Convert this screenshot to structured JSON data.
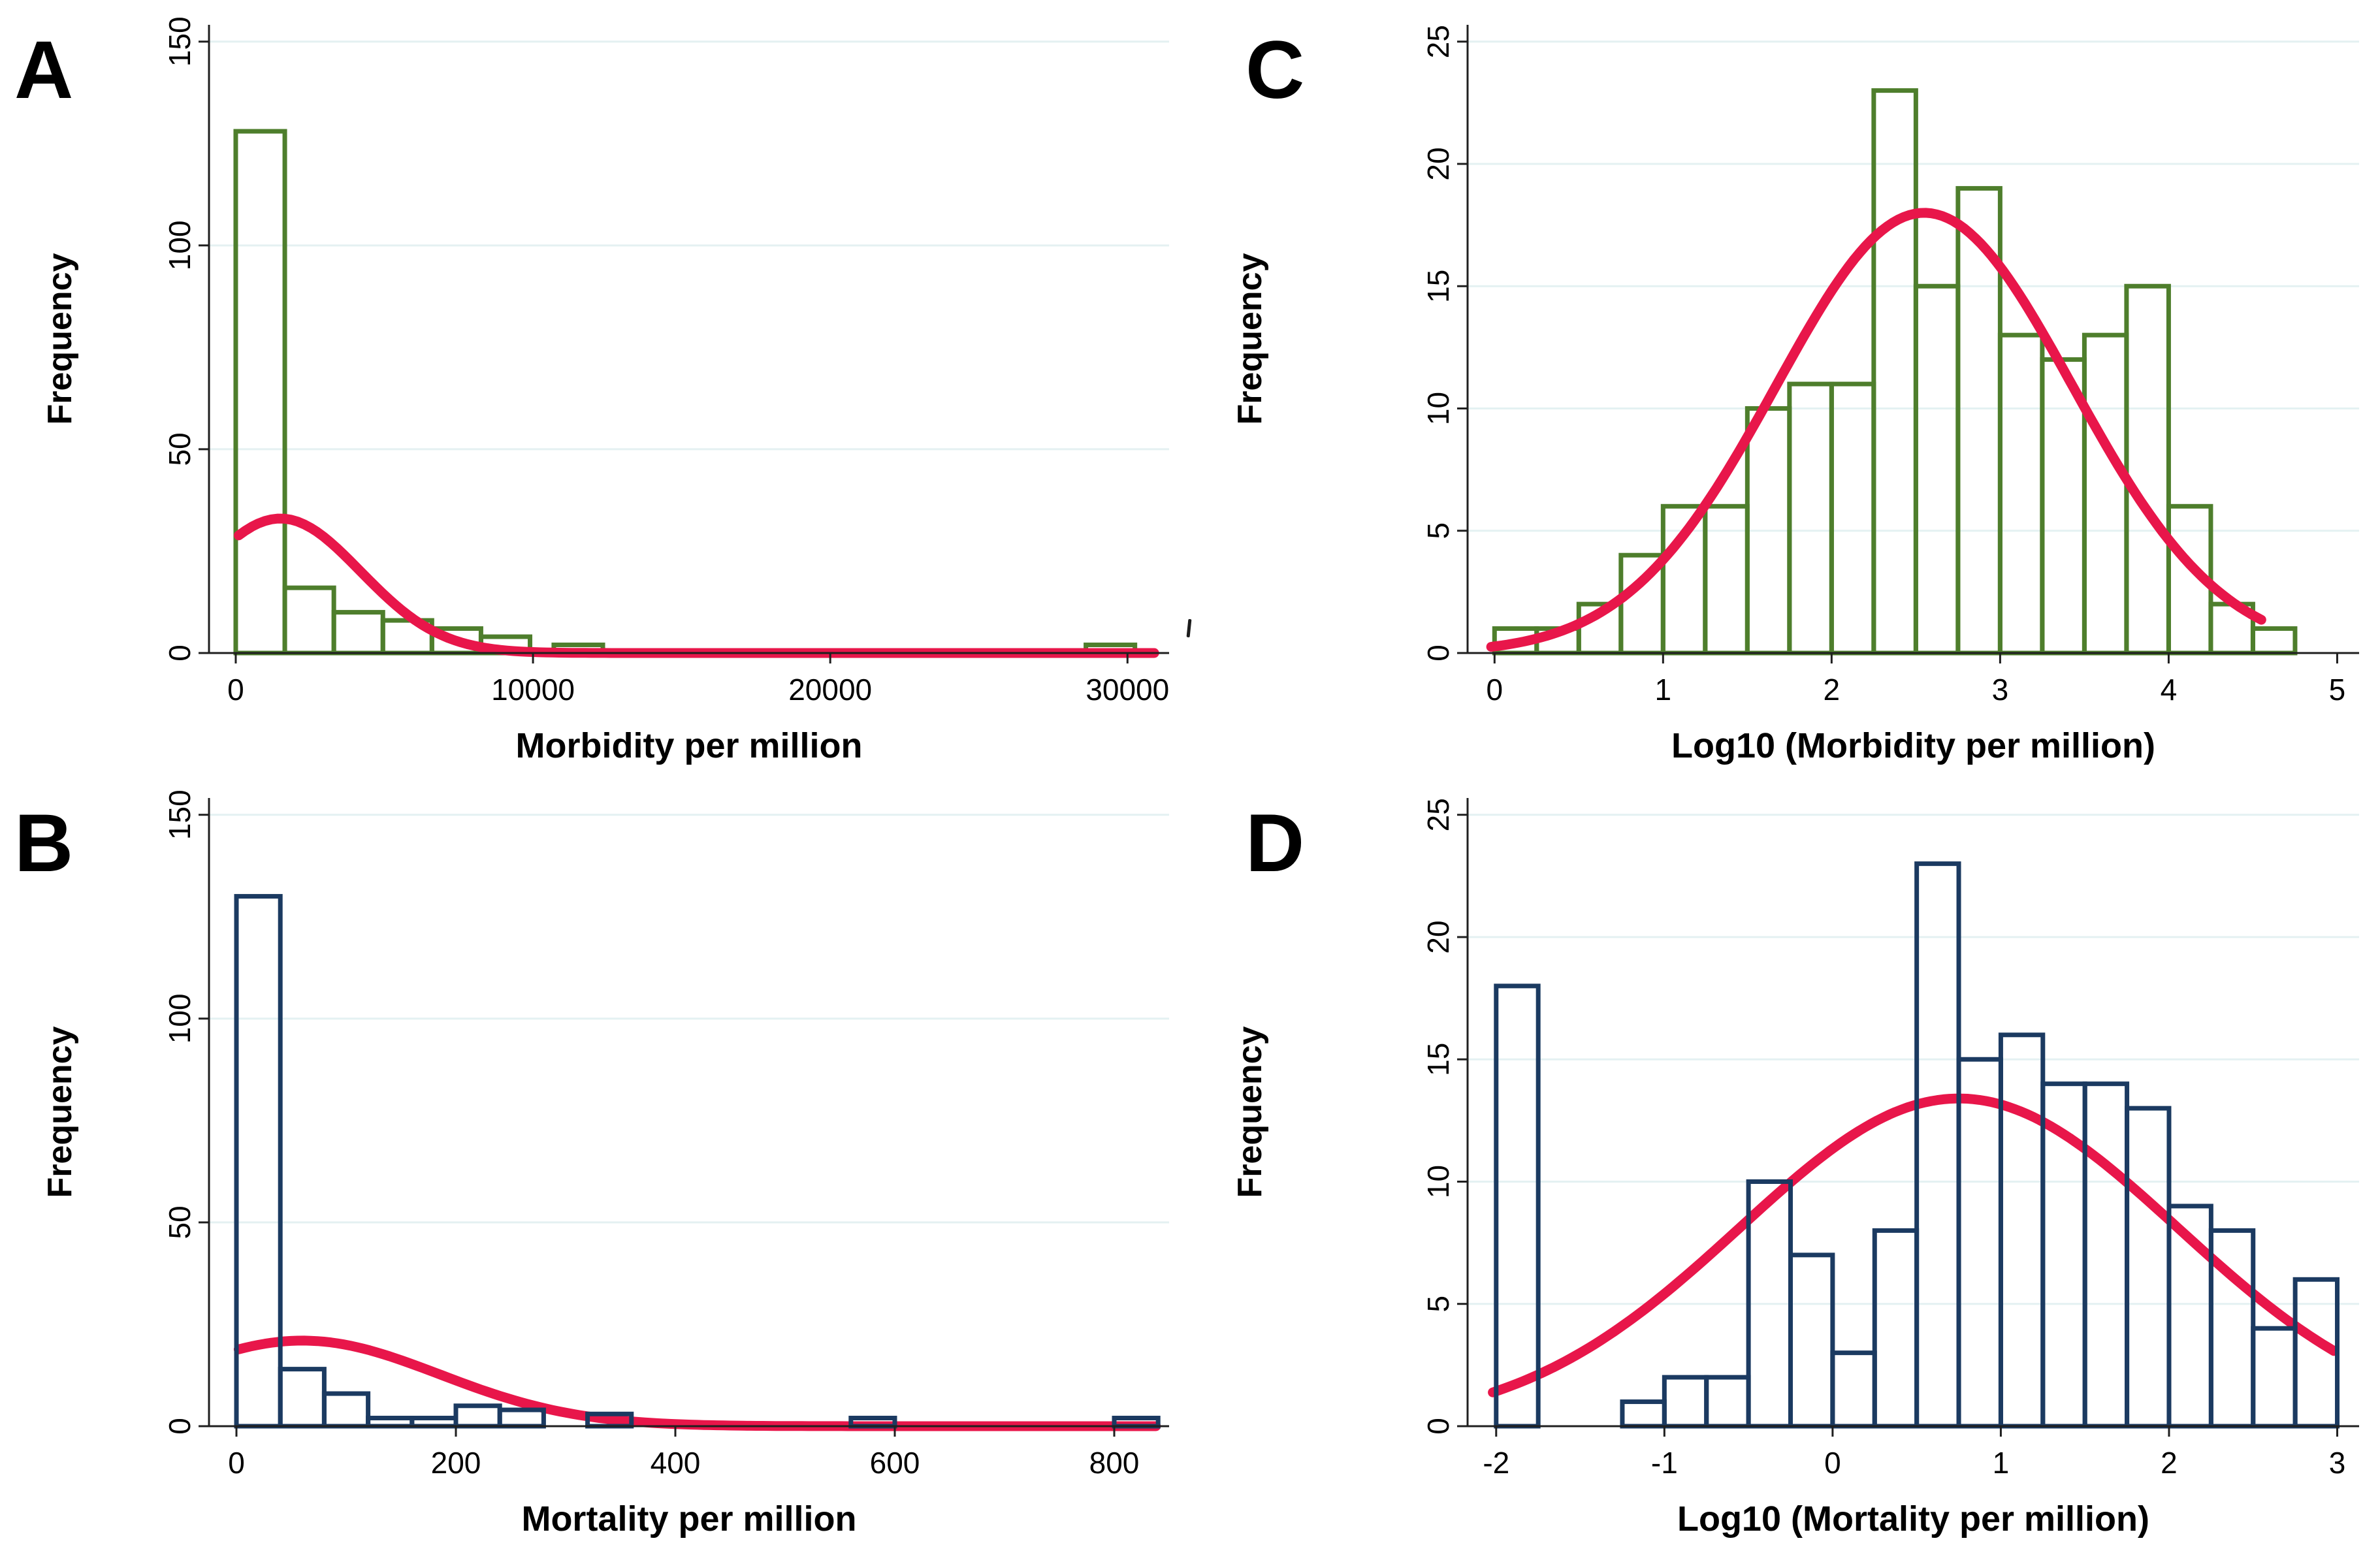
{
  "figure": {
    "background": "#ffffff",
    "grid_color": "#e4f1f2",
    "axis_color": "#1f1f1f",
    "curve_color": "#e8164a",
    "text_color": "#000000",
    "green": "#4e7e2c",
    "navy": "#1b3a61"
  },
  "chart_data": [
    {
      "id": "A",
      "type": "bar",
      "subtype": "histogram_with_normal_curve",
      "panel_letter": "A",
      "xlabel": "Morbidity per million",
      "ylabel": "Frequency",
      "bar_color": "#4e7e2c",
      "xlim": [
        -900,
        31400
      ],
      "ylim": [
        0,
        153
      ],
      "xticks": [
        0,
        10000,
        20000,
        30000
      ],
      "yticks": [
        0,
        50,
        100,
        150
      ],
      "grid": true,
      "bin_width": 1650,
      "bars": [
        {
          "x0": 0,
          "freq": 128
        },
        {
          "x0": 1650,
          "freq": 16
        },
        {
          "x0": 3300,
          "freq": 10
        },
        {
          "x0": 4950,
          "freq": 8
        },
        {
          "x0": 6600,
          "freq": 6
        },
        {
          "x0": 8250,
          "freq": 4
        },
        {
          "x0": 10700,
          "freq": 2
        },
        {
          "x0": 28600,
          "freq": 2
        }
      ],
      "curve": {
        "type": "normal",
        "mu": 1500,
        "sigma": 2700,
        "peak": 33,
        "x_from": 100,
        "x_to": 30900
      },
      "curve_on_top": true,
      "layout": {
        "margin_left": 320,
        "letter_x": 22
      }
    },
    {
      "id": "B",
      "type": "bar",
      "subtype": "histogram_with_normal_curve",
      "panel_letter": "B",
      "xlabel": "Mortality per million",
      "ylabel": "Frequency",
      "bar_color": "#1b3a61",
      "xlim": [
        -25,
        850
      ],
      "ylim": [
        0,
        153
      ],
      "xticks": [
        0,
        200,
        400,
        600,
        800
      ],
      "yticks": [
        0,
        50,
        100,
        150
      ],
      "grid": true,
      "bin_width": 40,
      "bars": [
        {
          "x0": 0,
          "freq": 130
        },
        {
          "x0": 40,
          "freq": 14
        },
        {
          "x0": 80,
          "freq": 8
        },
        {
          "x0": 120,
          "freq": 2
        },
        {
          "x0": 160,
          "freq": 2
        },
        {
          "x0": 200,
          "freq": 5
        },
        {
          "x0": 240,
          "freq": 4
        },
        {
          "x0": 320,
          "freq": 3
        },
        {
          "x0": 560,
          "freq": 2
        },
        {
          "x0": 800,
          "freq": 2
        }
      ],
      "curve": {
        "type": "normal",
        "mu": 60,
        "sigma": 125,
        "peak": 21,
        "x_from": 2,
        "x_to": 838
      },
      "curve_on_top": false,
      "layout": {
        "margin_left": 320,
        "letter_x": 22
      }
    },
    {
      "id": "C",
      "type": "bar",
      "subtype": "histogram_with_normal_curve",
      "panel_letter": "C",
      "xlabel": "Log10 (Morbidity per million)",
      "ylabel": "Frequency",
      "bar_color": "#4e7e2c",
      "xlim": [
        -0.16,
        5.13
      ],
      "ylim": [
        0,
        25.5
      ],
      "xticks": [
        0,
        1,
        2,
        3,
        4,
        5
      ],
      "yticks": [
        0,
        5,
        10,
        15,
        20,
        25
      ],
      "grid": true,
      "bin_width": 0.25,
      "bars": [
        {
          "x0": 0.0,
          "freq": 1
        },
        {
          "x0": 0.25,
          "freq": 1
        },
        {
          "x0": 0.5,
          "freq": 2
        },
        {
          "x0": 0.75,
          "freq": 4
        },
        {
          "x0": 1.0,
          "freq": 6
        },
        {
          "x0": 1.25,
          "freq": 6
        },
        {
          "x0": 1.5,
          "freq": 10
        },
        {
          "x0": 1.75,
          "freq": 11
        },
        {
          "x0": 2.0,
          "freq": 11
        },
        {
          "x0": 2.25,
          "freq": 23
        },
        {
          "x0": 2.5,
          "freq": 15
        },
        {
          "x0": 2.75,
          "freq": 19
        },
        {
          "x0": 3.0,
          "freq": 13
        },
        {
          "x0": 3.25,
          "freq": 12
        },
        {
          "x0": 3.5,
          "freq": 13
        },
        {
          "x0": 3.75,
          "freq": 15
        },
        {
          "x0": 4.0,
          "freq": 6
        },
        {
          "x0": 4.25,
          "freq": 2
        },
        {
          "x0": 4.5,
          "freq": 1
        }
      ],
      "curve": {
        "type": "normal",
        "mu": 2.55,
        "sigma": 0.88,
        "peak": 18,
        "x_from": -0.02,
        "x_to": 4.55
      },
      "curve_on_top": true,
      "layout": {
        "margin_left": 425,
        "letter_x": 85
      }
    },
    {
      "id": "D",
      "type": "bar",
      "subtype": "histogram_with_normal_curve",
      "panel_letter": "D",
      "xlabel": "Log10 (Mortality per million)",
      "ylabel": "Frequency",
      "bar_color": "#1b3a61",
      "xlim": [
        -2.17,
        3.13
      ],
      "ylim": [
        0,
        25.5
      ],
      "xticks": [
        -2,
        -1,
        0,
        1,
        2,
        3
      ],
      "yticks": [
        0,
        5,
        10,
        15,
        20,
        25
      ],
      "grid": true,
      "bin_width": 0.25,
      "bars": [
        {
          "x0": -2.0,
          "freq": 18
        },
        {
          "x0": -1.25,
          "freq": 1
        },
        {
          "x0": -1.0,
          "freq": 2
        },
        {
          "x0": -0.75,
          "freq": 2
        },
        {
          "x0": -0.5,
          "freq": 10
        },
        {
          "x0": -0.25,
          "freq": 7
        },
        {
          "x0": 0.0,
          "freq": 3
        },
        {
          "x0": 0.25,
          "freq": 8
        },
        {
          "x0": 0.5,
          "freq": 23
        },
        {
          "x0": 0.75,
          "freq": 15
        },
        {
          "x0": 1.0,
          "freq": 16
        },
        {
          "x0": 1.25,
          "freq": 14
        },
        {
          "x0": 1.5,
          "freq": 14
        },
        {
          "x0": 1.75,
          "freq": 13
        },
        {
          "x0": 2.0,
          "freq": 9
        },
        {
          "x0": 2.25,
          "freq": 8
        },
        {
          "x0": 2.5,
          "freq": 4
        },
        {
          "x0": 2.75,
          "freq": 6
        }
      ],
      "curve": {
        "type": "normal",
        "mu": 0.75,
        "sigma": 1.3,
        "peak": 13.4,
        "x_from": -2.02,
        "x_to": 2.98
      },
      "curve_on_top": false,
      "layout": {
        "margin_left": 425,
        "letter_x": 85
      }
    }
  ]
}
